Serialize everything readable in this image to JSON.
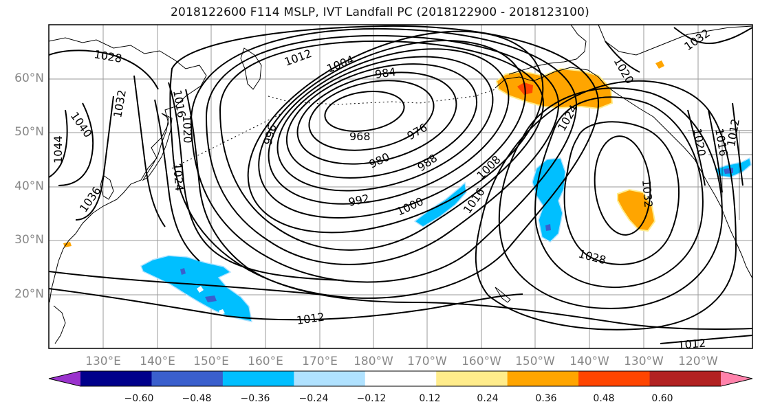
{
  "title": "2018122600 F114 MSLP, IVT Landfall PC (2018122900 - 2018123100)",
  "lat_labels": [
    "60°N",
    "50°N",
    "40°N",
    "30°N",
    "20°N"
  ],
  "lon_labels": [
    "130°E",
    "140°E",
    "150°E",
    "160°E",
    "170°E",
    "180°W",
    "170°W",
    "160°W",
    "150°W",
    "140°W",
    "130°W",
    "120°W"
  ],
  "contour_labels": [
    "1028",
    "1012",
    "1004",
    "984",
    "1016",
    "1020",
    "1032",
    "1040",
    "1044",
    "996",
    "968",
    "976",
    "980",
    "988",
    "1024",
    "1036",
    "1024",
    "992",
    "1000",
    "1008",
    "1016",
    "1020",
    "1016",
    "1012",
    "1032",
    "1028",
    "1012",
    "1012",
    "1020",
    "1032"
  ],
  "colorbar": {
    "ticks": [
      "−0.60",
      "−0.48",
      "−0.36",
      "−0.24",
      "−0.12",
      "0.12",
      "0.24",
      "0.36",
      "0.48",
      "0.60"
    ],
    "colors": [
      "#9a32cd",
      "#00008b",
      "#3a5fcd",
      "#00bfff",
      "#b0e2ff",
      "#ffffff",
      "#ffec8b",
      "#ffa500",
      "#ff4500",
      "#b22222",
      "#ff82ab"
    ]
  },
  "colors": {
    "grid": "#9a9a9a",
    "contour": "#000000",
    "coast": "#000000"
  }
}
